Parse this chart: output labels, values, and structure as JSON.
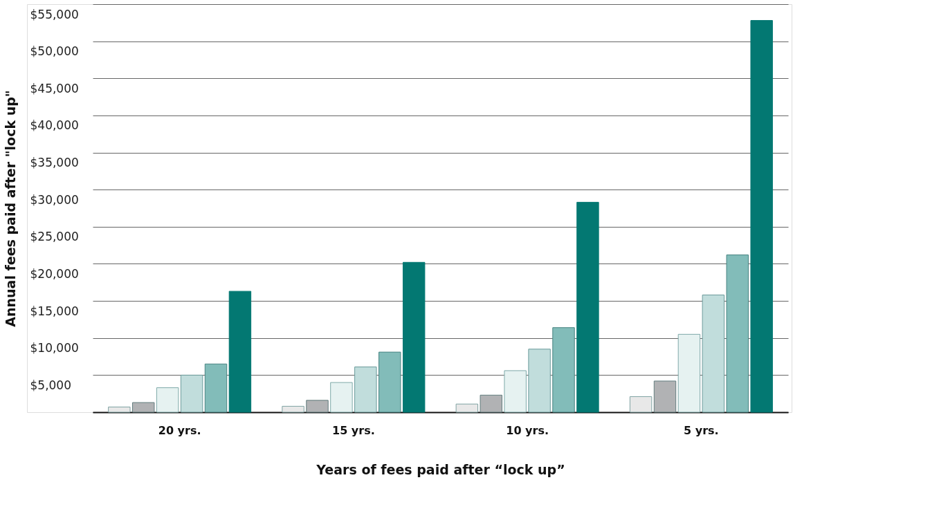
{
  "chart_data": {
    "type": "bar",
    "xlabel": "Years of fees paid after “lock up”",
    "ylabel": "Annual fees paid after \"lock up\"",
    "categories": [
      "20 yrs.",
      "15 yrs.",
      "10 yrs.",
      "5 yrs."
    ],
    "series": [
      {
        "color": "#e8e8e8",
        "values": [
          700,
          800,
          1100,
          2100
        ]
      },
      {
        "color": "#b1b2b4",
        "values": [
          1300,
          1600,
          2300,
          4200
        ]
      },
      {
        "color": "#e6f2f1",
        "values": [
          3300,
          4000,
          5600,
          10500
        ]
      },
      {
        "color": "#c1dddc",
        "values": [
          5000,
          6100,
          8500,
          15800
        ]
      },
      {
        "color": "#82bcb9",
        "values": [
          6500,
          8100,
          11400,
          21200
        ]
      },
      {
        "color": "#037872",
        "values": [
          16300,
          20200,
          28300,
          52800
        ]
      }
    ],
    "ylim": [
      0,
      55000
    ],
    "yticks": [
      {
        "value": 0,
        "label": null
      },
      {
        "value": 5000,
        "label": "$5,000"
      },
      {
        "value": 10000,
        "label": "$10,000"
      },
      {
        "value": 15000,
        "label": "$15,000"
      },
      {
        "value": 20000,
        "label": "$20,000"
      },
      {
        "value": 25000,
        "label": "$25,000"
      },
      {
        "value": 30000,
        "label": "$30,000"
      },
      {
        "value": 35000,
        "label": "$35,000"
      },
      {
        "value": 40000,
        "label": "$40,000"
      },
      {
        "value": 45000,
        "label": "$45,000"
      },
      {
        "value": 50000,
        "label": "$50,000"
      },
      {
        "value": 55000,
        "label": "$55,000"
      }
    ],
    "grid": "y",
    "legend": false
  }
}
